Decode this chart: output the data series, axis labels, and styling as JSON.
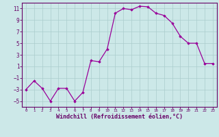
{
  "x": [
    0,
    1,
    2,
    3,
    4,
    5,
    6,
    7,
    8,
    9,
    10,
    11,
    12,
    13,
    14,
    15,
    16,
    17,
    18,
    19,
    20,
    21,
    22,
    23
  ],
  "y": [
    -3,
    -1.5,
    -2.8,
    -5.0,
    -2.8,
    -2.8,
    -5.0,
    -3.5,
    2.0,
    1.8,
    4.0,
    10.2,
    11.0,
    10.8,
    11.4,
    11.3,
    10.2,
    9.8,
    8.5,
    6.2,
    5.0,
    5.0,
    1.5,
    1.5
  ],
  "line_color": "#990099",
  "marker": "D",
  "marker_size": 1.8,
  "line_width": 0.9,
  "bg_color": "#cce8e8",
  "grid_color": "#aacccc",
  "xlabel": "Windchill (Refroidissement éolien,°C)",
  "xlabel_color": "#660066",
  "tick_color": "#660066",
  "ylim": [
    -6,
    12
  ],
  "xlim": [
    -0.5,
    23.5
  ],
  "yticks": [
    -5,
    -3,
    -1,
    1,
    3,
    5,
    7,
    9,
    11
  ],
  "xticks": [
    0,
    1,
    2,
    3,
    4,
    5,
    6,
    7,
    8,
    9,
    10,
    11,
    12,
    13,
    14,
    15,
    16,
    17,
    18,
    19,
    20,
    21,
    22,
    23
  ],
  "figsize": [
    3.2,
    2.0
  ],
  "dpi": 100
}
